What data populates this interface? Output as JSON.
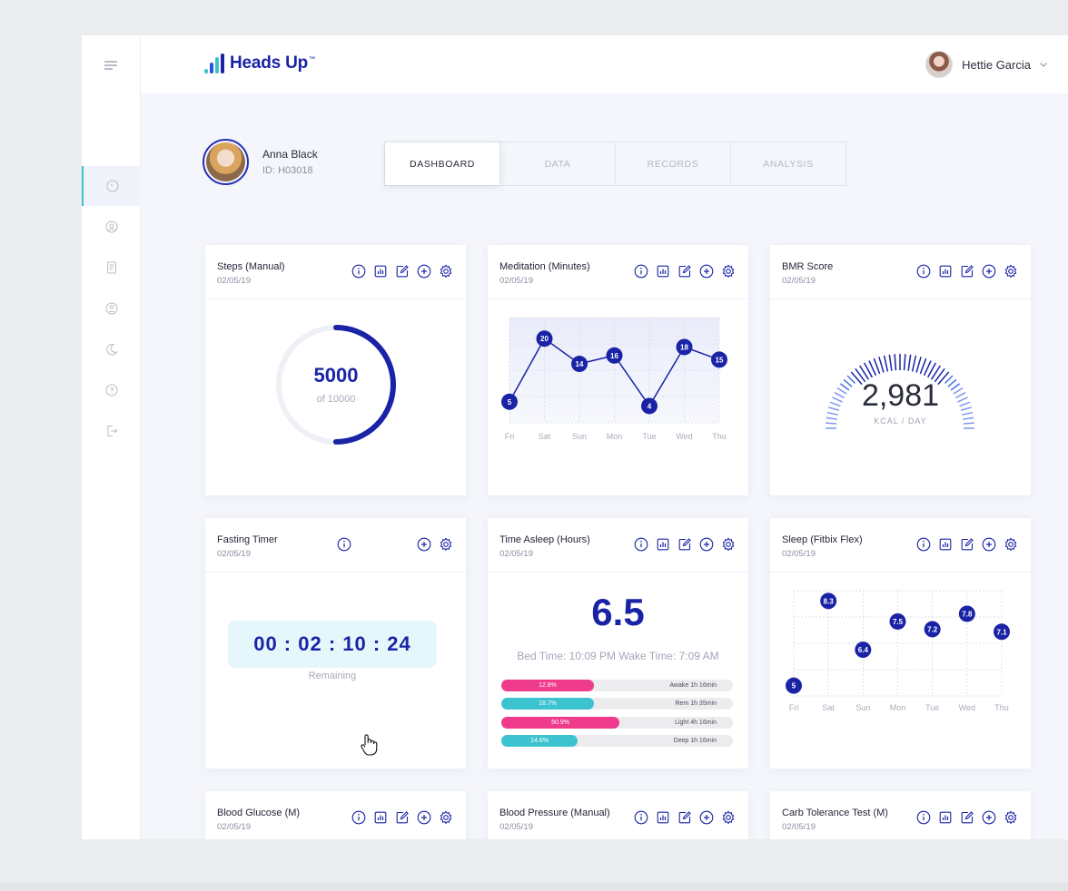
{
  "app": {
    "name": "Heads Up",
    "tm": "™",
    "user": "Hettie Garcia",
    "colors": {
      "primary": "#1a23a6",
      "accent_teal": "#3dc3cf",
      "accent_pink": "#ef3b8b"
    }
  },
  "sidebar": {
    "items": [
      {
        "icon": "dashboard-gauge-icon",
        "active": true
      },
      {
        "icon": "user-circle-icon",
        "active": false
      },
      {
        "icon": "document-icon",
        "active": false
      },
      {
        "icon": "profile-icon",
        "active": false
      },
      {
        "icon": "moon-icon",
        "active": false
      },
      {
        "icon": "help-icon",
        "active": false
      },
      {
        "icon": "logout-icon",
        "active": false
      }
    ]
  },
  "patient": {
    "name": "Anna Black",
    "id": "ID: H03018"
  },
  "tabs": [
    {
      "label": "DASHBOARD",
      "active": true
    },
    {
      "label": "DATA",
      "active": false
    },
    {
      "label": "RECORDS",
      "active": false
    },
    {
      "label": "ANALYSIS",
      "active": false
    }
  ],
  "cards": {
    "steps": {
      "title": "Steps (Manual)",
      "date": "02/05/19",
      "value": "5000",
      "sub": "of 10000",
      "progress": 0.5
    },
    "meditation": {
      "title": "Meditation (Minutes)",
      "date": "02/05/19"
    },
    "bmr": {
      "title": "BMR Score",
      "date": "02/05/19",
      "value": "2,981",
      "unit": "KCAL / DAY"
    },
    "fasting": {
      "title": "Fasting Timer",
      "date": "02/05/19",
      "timer": "00 : 02 : 10 : 24",
      "sub": "Remaining"
    },
    "asleep": {
      "title": "Time Asleep (Hours)",
      "date": "02/05/19",
      "value": "6.5",
      "times": "Bed Time: 10:09 PM   Wake Time: 7:09 AM",
      "bars": [
        {
          "pct_label": "12.8%",
          "label": "Awake 1h 16min",
          "fill": 0.4,
          "color": "#ef3b8b"
        },
        {
          "pct_label": "18.7%",
          "label": "Rem 1h 35min",
          "fill": 0.4,
          "color": "#3dc3cf"
        },
        {
          "pct_label": "50.9%",
          "label": "Light 4h 16min",
          "fill": 0.51,
          "color": "#ef3b8b"
        },
        {
          "pct_label": "14.6%",
          "label": "Deep 1h 16min",
          "fill": 0.33,
          "color": "#3dc3cf"
        }
      ]
    },
    "sleepfit": {
      "title": "Sleep (Fitbix Flex)",
      "date": "02/05/19"
    },
    "glucose": {
      "title": "Blood Glucose (M)",
      "date": "02/05/19"
    },
    "pressure": {
      "title": "Blood Pressure (Manual)",
      "date": "02/05/19"
    },
    "carb": {
      "title": "Carb Tolerance Test (M)",
      "date": "02/05/19"
    }
  },
  "chart_data": [
    {
      "type": "line",
      "x": [
        "Fri",
        "Sat",
        "Sun",
        "Mon",
        "Tue",
        "Wed",
        "Thu"
      ],
      "series": [
        {
          "values": [
            5,
            20,
            14,
            16,
            4,
            18,
            15
          ]
        }
      ],
      "ylim": [
        0,
        25
      ],
      "grid": true
    },
    {
      "type": "scatter",
      "x": [
        "Fri",
        "Sat",
        "Sun",
        "Mon",
        "Tue",
        "Wed",
        "Thu"
      ],
      "series": [
        {
          "values": [
            5,
            8.3,
            6.4,
            7.5,
            7.2,
            7.8,
            7.1
          ]
        }
      ],
      "grid": true
    }
  ]
}
